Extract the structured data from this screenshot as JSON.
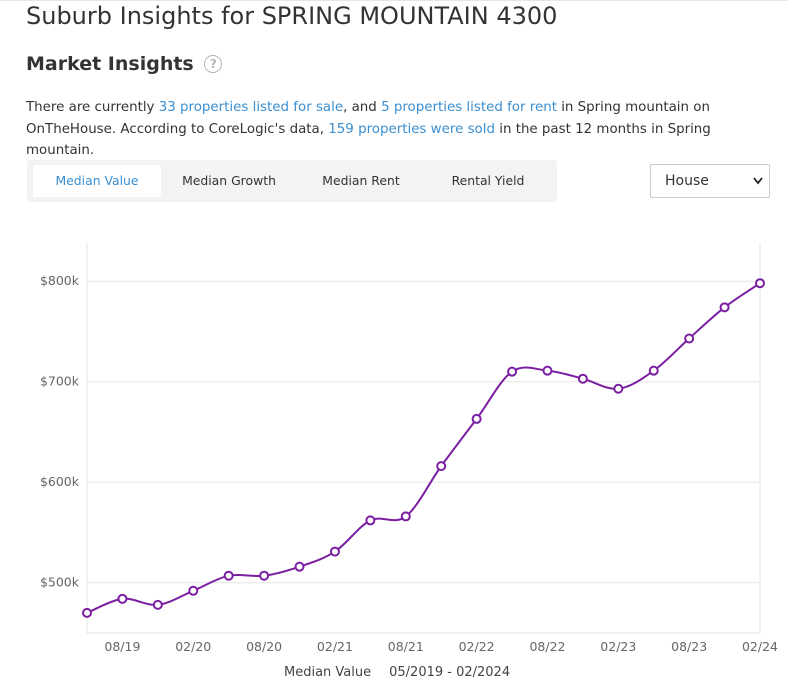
{
  "page": {
    "title": "Suburb Insights for SPRING MOUNTAIN 4300",
    "section_title": "Market Insights",
    "help_icon": "question-circle-icon"
  },
  "intro": {
    "t1": "There are currently ",
    "link_sale": "33 properties listed for sale",
    "t2": ", and ",
    "link_rent": "5 properties listed for rent",
    "t3": " in Spring mountain on OnTheHouse. According to CoreLogic's data, ",
    "link_sold": "159 properties were sold",
    "t4": " in the past 12 months in Spring mountain."
  },
  "tabs": [
    "Median Value",
    "Median Growth",
    "Median Rent",
    "Rental Yield"
  ],
  "property_type": {
    "selected": "House"
  },
  "colors": {
    "accent": "#3b8fd0",
    "series": "#7b1fa2",
    "grid": "#e6e6e6"
  },
  "chart_data": {
    "type": "line",
    "x": [
      "05/19",
      "08/19",
      "11/19",
      "02/20",
      "05/20",
      "08/20",
      "11/20",
      "02/21",
      "05/21",
      "08/21",
      "11/21",
      "02/22",
      "05/22",
      "08/22",
      "11/22",
      "02/23",
      "05/23",
      "08/23",
      "11/23",
      "02/24"
    ],
    "series": [
      {
        "values": [
          470,
          484,
          478,
          492,
          507,
          507,
          516,
          531,
          562,
          566,
          616,
          663,
          710,
          711,
          703,
          693,
          711,
          743,
          774,
          798
        ]
      }
    ],
    "x_tick_labels": [
      "08/19",
      "02/20",
      "08/20",
      "02/21",
      "08/21",
      "02/22",
      "08/22",
      "02/23",
      "08/23",
      "02/24"
    ],
    "y_ticks": [
      500,
      600,
      700,
      800
    ],
    "y_tick_labels": [
      "$500k",
      "$600k",
      "$700k",
      "$800k"
    ],
    "ylim": [
      450,
      838
    ],
    "grid": true
  },
  "footer": {
    "label": "Median Value",
    "range": "05/2019 - 02/2024"
  }
}
